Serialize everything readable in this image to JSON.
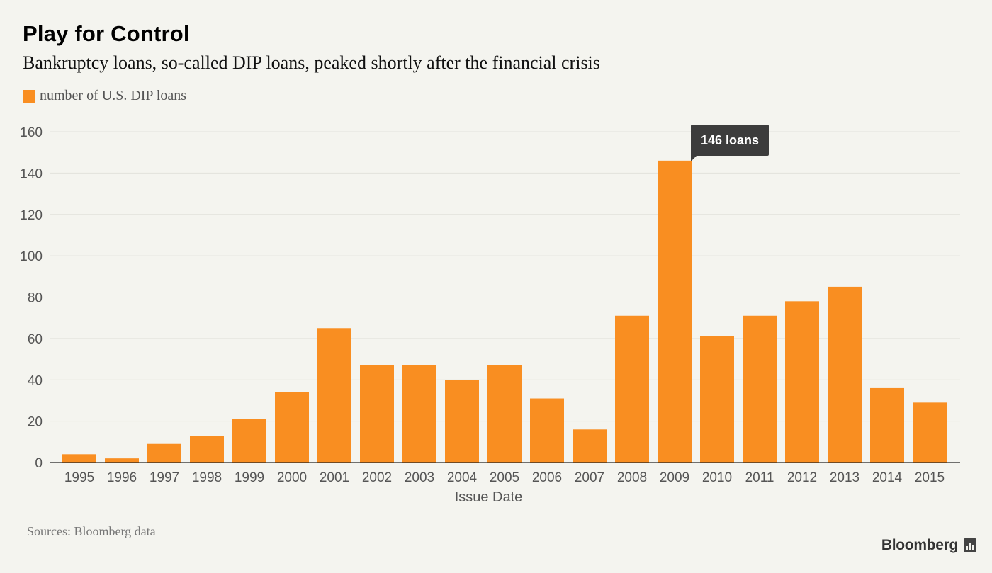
{
  "header": {
    "title": "Play for Control",
    "subtitle": "Bankruptcy loans, so-called DIP loans, peaked shortly after the financial crisis"
  },
  "legend": {
    "label": "number of U.S. DIP loans",
    "color": "#f98e21"
  },
  "footer": {
    "source": "Sources: Bloomberg data",
    "brand": "Bloomberg"
  },
  "chart_data": {
    "type": "bar",
    "title": "Play for Control",
    "subtitle": "Bankruptcy loans, so-called DIP loans, peaked shortly after the financial crisis",
    "xlabel": "Issue Date",
    "ylabel": "",
    "categories": [
      "1995",
      "1996",
      "1997",
      "1998",
      "1999",
      "2000",
      "2001",
      "2002",
      "2003",
      "2004",
      "2005",
      "2006",
      "2007",
      "2008",
      "2009",
      "2010",
      "2011",
      "2012",
      "2013",
      "2014",
      "2015"
    ],
    "series": [
      {
        "name": "number of U.S. DIP loans",
        "values": [
          4,
          2,
          9,
          13,
          21,
          34,
          65,
          47,
          47,
          40,
          47,
          31,
          16,
          71,
          146,
          61,
          71,
          78,
          85,
          36,
          29
        ]
      }
    ],
    "ylim": [
      0,
      160
    ],
    "yticks": [
      0,
      20,
      40,
      60,
      80,
      100,
      120,
      140,
      160
    ],
    "grid": true,
    "legend_position": "top-left",
    "bar_color": "#f98e21",
    "annotation": {
      "category": "2009",
      "text": "146 loans"
    }
  }
}
